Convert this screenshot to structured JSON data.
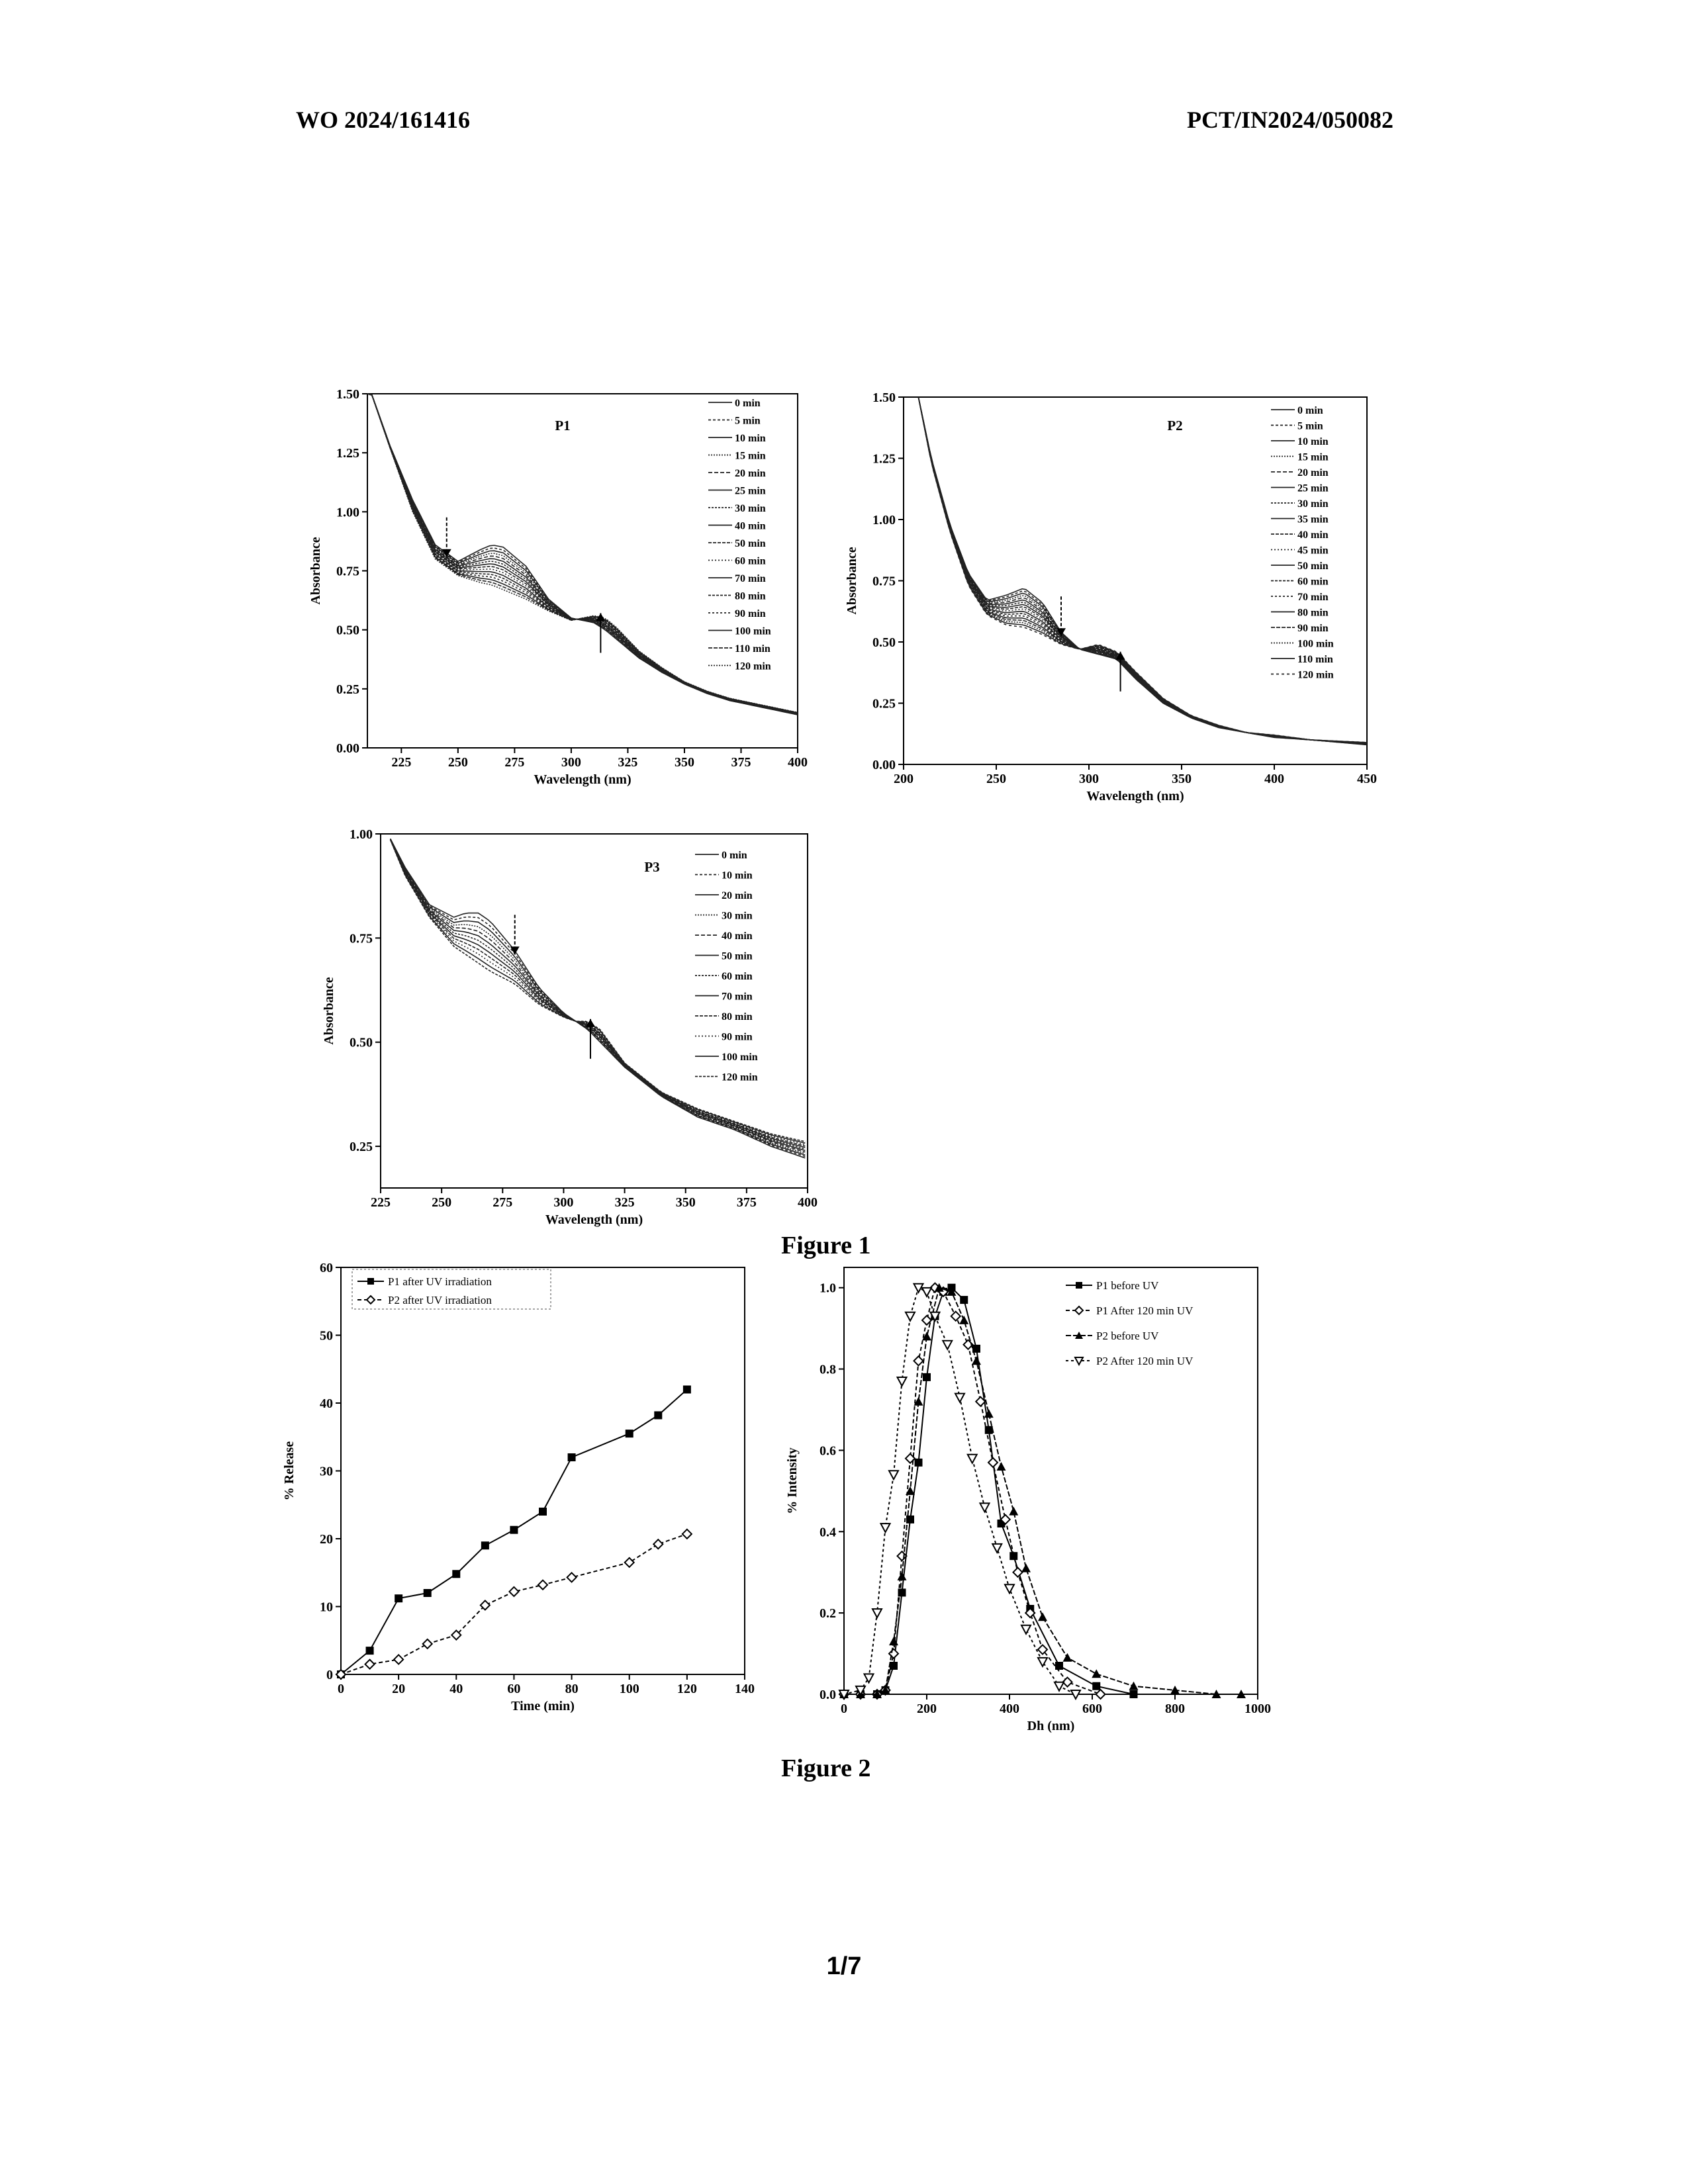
{
  "header": {
    "left": "WO 2024/161416",
    "right": "PCT/IN2024/050082"
  },
  "figure_captions": [
    "Figure 1",
    "Figure 2"
  ],
  "page_number": "1/7",
  "chart_data": [
    {
      "id": "p1",
      "type": "line",
      "panel_label": "P1",
      "xlabel": "Wavelength (nm)",
      "ylabel": "Absorbance",
      "xlim": [
        210,
        400
      ],
      "ylim": [
        0,
        1.5
      ],
      "xticks": [
        225,
        250,
        275,
        300,
        325,
        350,
        375,
        400
      ],
      "yticks": [
        0.0,
        0.25,
        0.5,
        0.75,
        1.0,
        1.25,
        1.5
      ],
      "ytick_labels": [
        "0.00",
        "0.25",
        "0.50",
        "0.75",
        "1.00",
        "1.25",
        "1.50"
      ],
      "legend": [
        "0 min",
        "5 min",
        "10 min",
        "15 min",
        "20 min",
        "25 min",
        "30 min",
        "40 min",
        "50 min",
        "60 min",
        "70 min",
        "80 min",
        "90 min",
        "100 min",
        "110 min",
        "120 min"
      ],
      "legend_position": "top-right",
      "arrows": [
        {
          "x": 245,
          "direction": "down"
        },
        {
          "x": 313,
          "direction": "up"
        }
      ],
      "x": [
        210,
        220,
        230,
        240,
        250,
        260,
        265,
        270,
        280,
        290,
        300,
        310,
        315,
        320,
        330,
        340,
        350,
        360,
        370,
        380,
        390,
        400
      ],
      "series_first": [
        1.55,
        1.28,
        1.05,
        0.86,
        0.79,
        0.84,
        0.86,
        0.85,
        0.77,
        0.63,
        0.55,
        0.53,
        0.5,
        0.46,
        0.38,
        0.32,
        0.27,
        0.23,
        0.2,
        0.18,
        0.16,
        0.14
      ],
      "series_last": [
        1.55,
        1.27,
        1.0,
        0.8,
        0.73,
        0.7,
        0.69,
        0.67,
        0.63,
        0.58,
        0.54,
        0.56,
        0.55,
        0.51,
        0.41,
        0.34,
        0.28,
        0.24,
        0.21,
        0.19,
        0.17,
        0.15
      ]
    },
    {
      "id": "p2",
      "type": "line",
      "panel_label": "P2",
      "xlabel": "Wavelength (nm)",
      "ylabel": "Absorbance",
      "xlim": [
        200,
        450
      ],
      "ylim": [
        0,
        1.5
      ],
      "xticks": [
        200,
        250,
        300,
        350,
        400,
        450
      ],
      "yticks": [
        0.0,
        0.25,
        0.5,
        0.75,
        1.0,
        1.25,
        1.5
      ],
      "ytick_labels": [
        "0.00",
        "0.25",
        "0.50",
        "0.75",
        "1.00",
        "1.25",
        "1.50"
      ],
      "legend": [
        "0 min",
        "5 min",
        "10 min",
        "15 min",
        "20 min",
        "25 min",
        "30 min",
        "35 min",
        "40 min",
        "45 min",
        "50 min",
        "60 min",
        "70 min",
        "80 min",
        "90 min",
        "100 min",
        "110 min",
        "120 min"
      ],
      "legend_position": "top-right",
      "arrows": [
        {
          "x": 285,
          "direction": "down"
        },
        {
          "x": 317,
          "direction": "up"
        }
      ],
      "x": [
        208,
        215,
        225,
        235,
        245,
        255,
        265,
        275,
        285,
        295,
        305,
        315,
        325,
        340,
        355,
        370,
        385,
        400,
        420,
        450
      ],
      "series_first": [
        1.5,
        1.25,
        0.98,
        0.78,
        0.67,
        0.69,
        0.72,
        0.66,
        0.54,
        0.47,
        0.45,
        0.43,
        0.35,
        0.25,
        0.19,
        0.15,
        0.13,
        0.11,
        0.1,
        0.08
      ],
      "series_last": [
        1.5,
        1.23,
        0.95,
        0.73,
        0.61,
        0.57,
        0.56,
        0.53,
        0.49,
        0.47,
        0.49,
        0.46,
        0.38,
        0.27,
        0.2,
        0.16,
        0.13,
        0.12,
        0.1,
        0.09
      ]
    },
    {
      "id": "p3",
      "type": "line",
      "panel_label": "P3",
      "xlabel": "Wavelength (nm)",
      "ylabel": "Absorbance",
      "xlim": [
        225,
        400
      ],
      "ylim": [
        0.15,
        1.0
      ],
      "xticks": [
        225,
        250,
        275,
        300,
        325,
        350,
        375,
        400
      ],
      "yticks": [
        0.25,
        0.5,
        0.75,
        1.0
      ],
      "ytick_labels": [
        "0.25",
        "0.50",
        "0.75",
        "1.00"
      ],
      "legend": [
        "0 min",
        "10 min",
        "20 min",
        "30 min",
        "40 min",
        "50 min",
        "60 min",
        "70 min",
        "80 min",
        "90 min",
        "100 min",
        "120 min"
      ],
      "legend_position": "top-right",
      "arrows": [
        {
          "x": 280,
          "direction": "down"
        },
        {
          "x": 311,
          "direction": "up"
        }
      ],
      "x": [
        228,
        235,
        245,
        255,
        260,
        265,
        270,
        280,
        290,
        300,
        305,
        310,
        315,
        325,
        340,
        355,
        370,
        385,
        400
      ],
      "series_first": [
        1.0,
        0.92,
        0.83,
        0.8,
        0.81,
        0.81,
        0.79,
        0.72,
        0.63,
        0.57,
        0.55,
        0.53,
        0.5,
        0.44,
        0.37,
        0.32,
        0.29,
        0.25,
        0.22
      ],
      "series_last": [
        1.0,
        0.9,
        0.8,
        0.73,
        0.71,
        0.69,
        0.67,
        0.64,
        0.59,
        0.56,
        0.55,
        0.55,
        0.53,
        0.45,
        0.38,
        0.34,
        0.31,
        0.28,
        0.26
      ]
    },
    {
      "id": "release",
      "type": "line",
      "xlabel": "Time (min)",
      "ylabel": "% Release",
      "xlim": [
        0,
        140
      ],
      "ylim": [
        0,
        60
      ],
      "xticks": [
        0,
        20,
        40,
        60,
        80,
        100,
        120,
        140
      ],
      "yticks": [
        0,
        10,
        20,
        30,
        40,
        50,
        60
      ],
      "legend_position": "top-left",
      "series": [
        {
          "name": "P1 after UV irradiation",
          "marker": "square",
          "x": [
            0,
            10,
            20,
            30,
            40,
            50,
            60,
            70,
            80,
            100,
            110,
            120
          ],
          "values": [
            0,
            3.5,
            11.2,
            12,
            14.8,
            19,
            21.3,
            24,
            32,
            35.5,
            38.2,
            42
          ]
        },
        {
          "name": "P2 after UV irradiation",
          "marker": "diamond",
          "x": [
            0,
            10,
            20,
            30,
            40,
            50,
            60,
            70,
            80,
            100,
            110,
            120
          ],
          "values": [
            0,
            1.5,
            2.2,
            4.5,
            5.8,
            10.2,
            12.2,
            13.2,
            14.3,
            16.5,
            19.2,
            20.7
          ]
        }
      ]
    },
    {
      "id": "dls",
      "type": "line",
      "xlabel": "Dh (nm)",
      "ylabel": "% Intensity",
      "xlim": [
        0,
        1000
      ],
      "ylim": [
        0,
        1.05
      ],
      "xticks": [
        0,
        200,
        400,
        600,
        800,
        1000
      ],
      "yticks": [
        0.0,
        0.2,
        0.4,
        0.6,
        0.8,
        1.0
      ],
      "ytick_labels": [
        "0.0",
        "0.2",
        "0.4",
        "0.6",
        "0.8",
        "1.0"
      ],
      "legend_position": "top-right",
      "series": [
        {
          "name": "P1 before UV",
          "marker": "square",
          "x": [
            0,
            40,
            80,
            100,
            120,
            140,
            160,
            180,
            200,
            220,
            240,
            260,
            290,
            320,
            350,
            380,
            410,
            450,
            520,
            610,
            700
          ],
          "values": [
            0,
            0,
            0,
            0.01,
            0.07,
            0.25,
            0.43,
            0.57,
            0.78,
            0.93,
            0.99,
            1.0,
            0.97,
            0.85,
            0.65,
            0.42,
            0.34,
            0.21,
            0.07,
            0.02,
            0
          ]
        },
        {
          "name": "P1 After 120 min UV",
          "marker": "diamond",
          "x": [
            0,
            40,
            80,
            100,
            120,
            140,
            160,
            180,
            200,
            220,
            240,
            270,
            300,
            330,
            360,
            390,
            420,
            450,
            480,
            540,
            620
          ],
          "values": [
            0,
            0,
            0,
            0.01,
            0.1,
            0.34,
            0.58,
            0.82,
            0.92,
            1.0,
            0.99,
            0.93,
            0.86,
            0.72,
            0.57,
            0.43,
            0.3,
            0.2,
            0.11,
            0.03,
            0
          ]
        },
        {
          "name": "P2 before UV",
          "marker": "triangle",
          "x": [
            0,
            40,
            80,
            100,
            120,
            140,
            160,
            180,
            200,
            230,
            260,
            290,
            320,
            350,
            380,
            410,
            440,
            480,
            540,
            610,
            700,
            800,
            900,
            960
          ],
          "values": [
            0,
            0,
            0,
            0.01,
            0.13,
            0.29,
            0.5,
            0.72,
            0.88,
            1.0,
            0.99,
            0.92,
            0.82,
            0.69,
            0.56,
            0.45,
            0.31,
            0.19,
            0.09,
            0.05,
            0.02,
            0.01,
            0,
            0
          ]
        },
        {
          "name": "P2 After 120 min UV",
          "marker": "open-triangle-down",
          "x": [
            0,
            40,
            60,
            80,
            100,
            120,
            140,
            160,
            180,
            200,
            220,
            250,
            280,
            310,
            340,
            370,
            400,
            440,
            480,
            520,
            560
          ],
          "values": [
            0,
            0.01,
            0.04,
            0.2,
            0.41,
            0.54,
            0.77,
            0.93,
            1.0,
            0.99,
            0.93,
            0.86,
            0.73,
            0.58,
            0.46,
            0.36,
            0.26,
            0.16,
            0.08,
            0.02,
            0
          ]
        }
      ]
    }
  ]
}
